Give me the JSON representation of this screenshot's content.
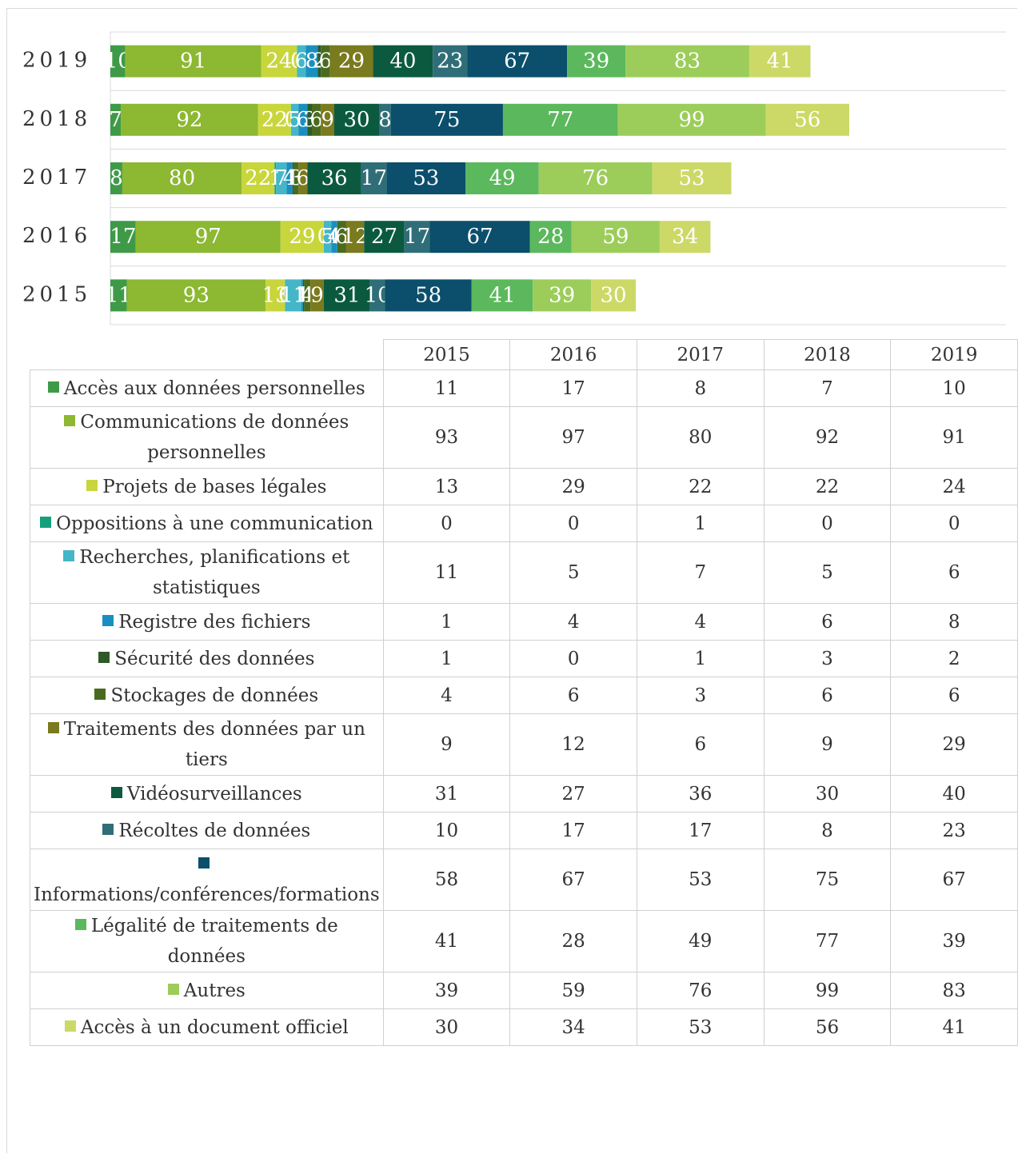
{
  "chart_data": {
    "type": "stacked-bar-horizontal",
    "categories": [
      "2015",
      "2016",
      "2017",
      "2018",
      "2019"
    ],
    "xlim": [
      0,
      600
    ],
    "series": [
      {
        "name": "Accès aux données personnelles",
        "color": "#3f9a48",
        "values": [
          11,
          17,
          8,
          7,
          10
        ]
      },
      {
        "name": "Communications de données personnelles",
        "color": "#8cb832",
        "values": [
          93,
          97,
          80,
          92,
          91
        ]
      },
      {
        "name": "Projets de bases légales",
        "color": "#c8d63c",
        "values": [
          13,
          29,
          22,
          22,
          24
        ]
      },
      {
        "name": "Oppositions à une communication",
        "color": "#14a07c",
        "values": [
          0,
          0,
          1,
          0,
          0
        ]
      },
      {
        "name": "Recherches, planifications et statistiques",
        "color": "#44b6c8",
        "values": [
          11,
          5,
          7,
          5,
          6
        ]
      },
      {
        "name": "Registre des fichiers",
        "color": "#1a8fbf",
        "values": [
          1,
          4,
          4,
          6,
          8
        ]
      },
      {
        "name": "Sécurité des données",
        "color": "#2d5a27",
        "values": [
          1,
          0,
          1,
          3,
          2
        ]
      },
      {
        "name": "Stockages de données",
        "color": "#4a6b1f",
        "values": [
          4,
          6,
          3,
          6,
          6
        ]
      },
      {
        "name": "Traitements des données par un tiers",
        "color": "#7a7a1e",
        "values": [
          9,
          12,
          6,
          9,
          29
        ]
      },
      {
        "name": "Vidéosurveillances",
        "color": "#0b5a40",
        "values": [
          31,
          27,
          36,
          30,
          40
        ]
      },
      {
        "name": "Récoltes de données",
        "color": "#2f6e78",
        "values": [
          10,
          17,
          17,
          8,
          23
        ]
      },
      {
        "name": "Informations/conférences/formations",
        "color": "#0b4f6c",
        "values": [
          58,
          67,
          53,
          75,
          67
        ]
      },
      {
        "name": "Légalité de traitements de données",
        "color": "#5cb85c",
        "values": [
          41,
          28,
          49,
          77,
          39
        ]
      },
      {
        "name": "Autres",
        "color": "#9ccd5a",
        "values": [
          39,
          59,
          76,
          99,
          83
        ]
      },
      {
        "name": "Accès à un document officiel",
        "color": "#ccd966",
        "values": [
          30,
          34,
          53,
          56,
          41
        ]
      }
    ]
  }
}
